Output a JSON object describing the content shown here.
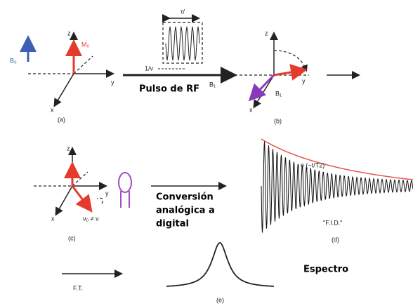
{
  "panel_a": {
    "field": "B₀",
    "z": "z",
    "magnetization": "M₀",
    "y": "y",
    "x": "x",
    "caption": "(a)"
  },
  "pulse": {
    "width": "τ/",
    "period": "1/ν",
    "title": "Pulso de RF",
    "field": "B₁"
  },
  "panel_b": {
    "z": "z",
    "y": "y",
    "x": "x",
    "field": "B₁",
    "caption": "(b)"
  },
  "panel_c": {
    "z": "z",
    "y": "y",
    "x": "x",
    "offset": "ν₀ ≠ ν",
    "caption": "(c)"
  },
  "conversion": {
    "lines": [
      "Conversión",
      "analógica a",
      "digital"
    ]
  },
  "panel_d": {
    "envelope": "e (−t/T2)",
    "signal": "\"F.I.D.\"",
    "caption": "(d)"
  },
  "panel_e": {
    "transform": "F.T.",
    "caption": "(e)",
    "title": "Espectro"
  }
}
